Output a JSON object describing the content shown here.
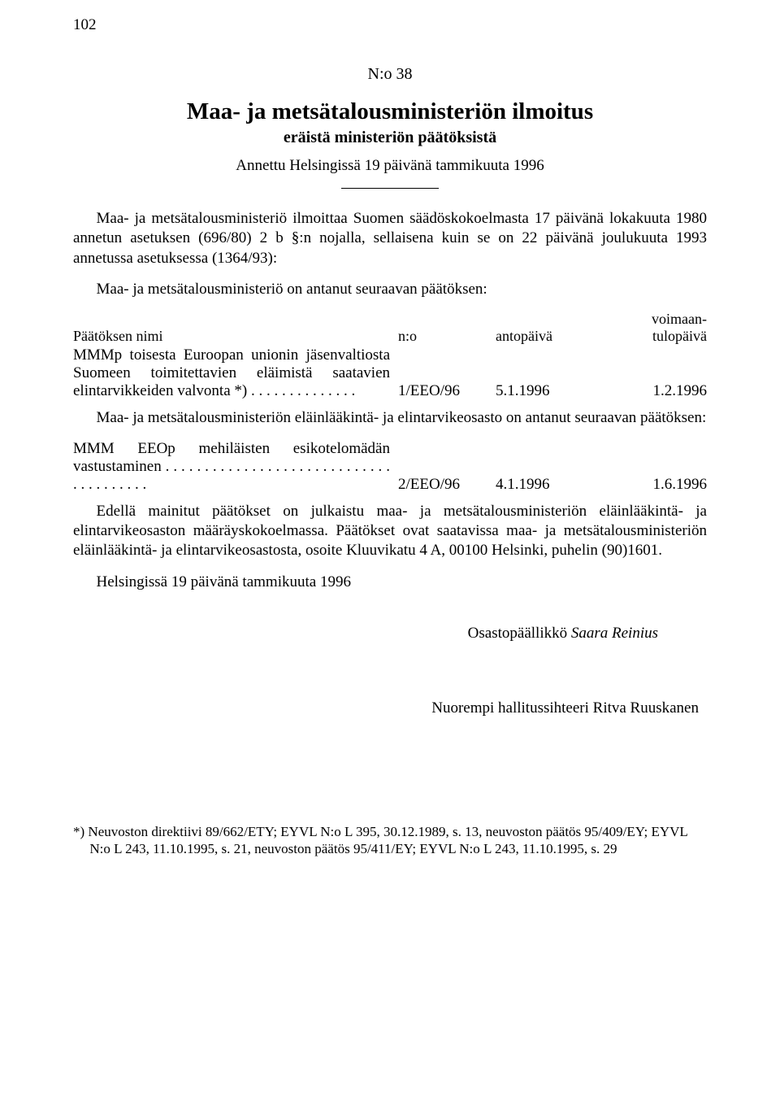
{
  "page_number": "102",
  "header": {
    "doc_no": "N:o 38",
    "title": "Maa- ja metsätalousministeriön ilmoitus",
    "subtitle": "eräistä ministeriön päätöksistä",
    "given": "Annettu Helsingissä 19 päivänä tammikuuta 1996"
  },
  "intro": "Maa- ja metsätalousministeriö ilmoittaa Suomen säädöskokoelmasta 17 päivänä lokakuuta 1980 annetun asetuksen (696/80) 2 b §:n nojalla, sellaisena kuin se on 22 päivänä joulukuuta 1993 annetussa asetuksessa (1364/93):",
  "section1_lead": "Maa- ja metsätalousministeriö on antanut seuraavan päätöksen:",
  "table_header": {
    "name": "Päätöksen nimi",
    "no": "n:o",
    "antopaiva": "antopäivä",
    "voimaan_top": "voimaan-",
    "voimaan_bot": "tulopäivä"
  },
  "row1": {
    "name": "MMMp toisesta Euroopan unionin jäsenvaltiosta Suomeen toimitettavien eläimistä saatavien elintarvikkeiden valvonta *) . . . . . . . . . . . . . .",
    "no": "1/EEO/96",
    "antopaiva": "5.1.1996",
    "voimaan": "1.2.1996"
  },
  "section2_lead": "Maa- ja metsätalousministeriön eläinlääkintä- ja elintarvikeosasto on antanut seuraavan päätöksen:",
  "row2": {
    "name": "MMM EEOp mehiläisten esikotelomädän vastustaminen . . . . . . . . . . . . . . . . . . . . . . . . . . . . . . . . . . . . . . .",
    "no": "2/EEO/96",
    "antopaiva": "4.1.1996",
    "voimaan": "1.6.1996"
  },
  "tailpara": "Edellä mainitut päätökset on julkaistu maa- ja metsätalousministeriön eläinlääkintä- ja elintarvikeosaston määräyskokoelmassa. Päätökset ovat saatavissa maa- ja metsätalousministeriön eläinlääkintä- ja elintarvikeosastosta, osoite Kluuvikatu 4 A, 00100 Helsinki, puhelin (90)1601.",
  "place_date": "Helsingissä 19 päivänä tammikuuta 1996",
  "sign1_title": "Osastopäällikkö ",
  "sign1_name": "Saara Reinius",
  "sign2_title": "Nuorempi hallitussihteeri ",
  "sign2_name": "Ritva Ruuskanen",
  "footnote": "*) Neuvoston direktiivi 89/662/ETY; EYVL N:o L 395, 30.12.1989, s. 13, neuvoston päätös 95/409/EY; EYVL N:o L 243, 11.10.1995, s. 21, neuvoston päätös 95/411/EY; EYVL N:o L 243, 11.10.1995, s. 29"
}
